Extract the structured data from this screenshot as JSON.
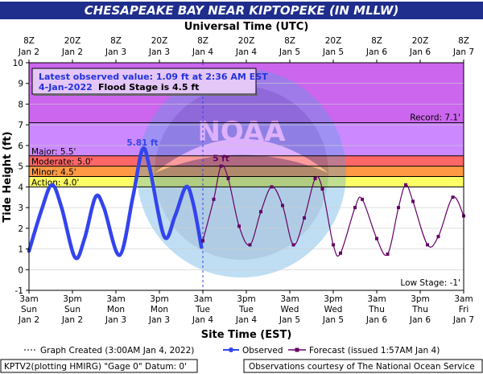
{
  "title": "CHESAPEAKE BAY NEAR KIPTOPEKE (IN MLLW)",
  "top_axis_title": "Universal Time (UTC)",
  "bottom_axis_title": "Site Time (EST)",
  "y_axis_title": "Tide Height (ft)",
  "info": {
    "line1": "Latest observed value: 1.09 ft at 2:36 AM EST",
    "line2_date": "4-Jan-2022",
    "line2_flood": "Flood Stage is 4.5 ft"
  },
  "annotations": {
    "obs_peak": "5.81 ft",
    "fcst_peak": "5 ft"
  },
  "legend": {
    "created": "Graph Created (3:00AM Jan 4, 2022)",
    "observed": "Observed",
    "forecast": "Forecast (issued 1:57AM Jan 4)"
  },
  "footer": {
    "left": "KPTV2(plotting HMIRG) \"Gage 0\" Datum: 0'",
    "right": "Observations courtesy of The National Ocean Service"
  },
  "watermark": "NOAA",
  "colors": {
    "title_bg": "#1f2e8c",
    "record": "#cc66ee",
    "major": "#cc88ff",
    "moderate": "#ff6666",
    "minor": "#ff9944",
    "action": "#ffff66",
    "observed": "#3344ee",
    "forecast": "#660066"
  },
  "chart_data": {
    "type": "line",
    "xlabel": "Site Time (EST)",
    "ylabel": "Tide Height (ft)",
    "x_range": [
      "Jan 2 03:00 EST",
      "Jan 7 03:00 EST"
    ],
    "ylim": [
      -1,
      10
    ],
    "yticks": [
      -1,
      0,
      1,
      2,
      3,
      4,
      5,
      6,
      7,
      8,
      9,
      10
    ],
    "top_ticks": [
      {
        "hour": "8Z",
        "date": "Jan 2"
      },
      {
        "hour": "20Z",
        "date": "Jan 2"
      },
      {
        "hour": "8Z",
        "date": "Jan 3"
      },
      {
        "hour": "20Z",
        "date": "Jan 3"
      },
      {
        "hour": "8Z",
        "date": "Jan 4"
      },
      {
        "hour": "20Z",
        "date": "Jan 4"
      },
      {
        "hour": "8Z",
        "date": "Jan 5"
      },
      {
        "hour": "20Z",
        "date": "Jan 5"
      },
      {
        "hour": "8Z",
        "date": "Jan 6"
      },
      {
        "hour": "20Z",
        "date": "Jan 6"
      },
      {
        "hour": "8Z",
        "date": "Jan 7"
      }
    ],
    "bottom_ticks": [
      {
        "time": "3am",
        "day": "Sun",
        "date": "Jan 2"
      },
      {
        "time": "3pm",
        "day": "Sun",
        "date": "Jan 2"
      },
      {
        "time": "3am",
        "day": "Mon",
        "date": "Jan 3"
      },
      {
        "time": "3pm",
        "day": "Mon",
        "date": "Jan 3"
      },
      {
        "time": "3am",
        "day": "Tue",
        "date": "Jan 4"
      },
      {
        "time": "3pm",
        "day": "Tue",
        "date": "Jan 4"
      },
      {
        "time": "3am",
        "day": "Wed",
        "date": "Jan 5"
      },
      {
        "time": "3pm",
        "day": "Wed",
        "date": "Jan 5"
      },
      {
        "time": "3am",
        "day": "Thu",
        "date": "Jan 6"
      },
      {
        "time": "3pm",
        "day": "Thu",
        "date": "Jan 6"
      },
      {
        "time": "3am",
        "day": "Fri",
        "date": "Jan 7"
      }
    ],
    "stages": [
      {
        "name": "Record",
        "label": "Record: 7.1'",
        "value": 7.1
      },
      {
        "name": "Major",
        "label": "Major: 5.5'",
        "value": 5.5
      },
      {
        "name": "Moderate",
        "label": "Moderate: 5.0'",
        "value": 5.0
      },
      {
        "name": "Minor",
        "label": "Minor: 4.5'",
        "value": 4.5
      },
      {
        "name": "Action",
        "label": "Action: 4.0'",
        "value": 4.0
      },
      {
        "name": "Low Stage",
        "label": "Low Stage: -1'",
        "value": -1
      }
    ],
    "graph_created": "Jan 4 03:00 EST",
    "series": [
      {
        "name": "Observed",
        "points": [
          [
            "Jan 2 03:00",
            0.9
          ],
          [
            "Jan 2 06:30",
            2.9
          ],
          [
            "Jan 2 09:20",
            4.1
          ],
          [
            "Jan 2 12:00",
            3.0
          ],
          [
            "Jan 2 15:40",
            0.6
          ],
          [
            "Jan 2 18:20",
            1.5
          ],
          [
            "Jan 2 21:20",
            3.5
          ],
          [
            "Jan 2 23:40",
            3.0
          ],
          [
            "Jan 3 04:00",
            0.7
          ],
          [
            "Jan 3 07:40",
            3.5
          ],
          [
            "Jan 3 10:20",
            5.81
          ],
          [
            "Jan 3 12:20",
            4.9
          ],
          [
            "Jan 3 16:20",
            1.6
          ],
          [
            "Jan 3 19:20",
            2.6
          ],
          [
            "Jan 3 22:20",
            4.0
          ],
          [
            "Jan 4 00:20",
            3.2
          ],
          [
            "Jan 4 02:36",
            1.09
          ]
        ]
      },
      {
        "name": "Forecast",
        "points": [
          [
            "Jan 4 03:00",
            1.4
          ],
          [
            "Jan 4 06:00",
            3.4
          ],
          [
            "Jan 4 08:00",
            5.0
          ],
          [
            "Jan 4 10:00",
            4.4
          ],
          [
            "Jan 4 13:00",
            2.1
          ],
          [
            "Jan 4 16:00",
            1.2
          ],
          [
            "Jan 4 19:00",
            2.8
          ],
          [
            "Jan 4 22:00",
            4.0
          ],
          [
            "Jan 5 01:00",
            3.1
          ],
          [
            "Jan 5 04:00",
            1.2
          ],
          [
            "Jan 5 07:00",
            2.5
          ],
          [
            "Jan 5 10:00",
            4.4
          ],
          [
            "Jan 5 12:00",
            3.9
          ],
          [
            "Jan 5 15:00",
            1.2
          ],
          [
            "Jan 5 17:00",
            0.8
          ],
          [
            "Jan 5 21:00",
            3.0
          ],
          [
            "Jan 5 23:00",
            3.4
          ],
          [
            "Jan 6 03:00",
            1.5
          ],
          [
            "Jan 6 06:00",
            0.75
          ],
          [
            "Jan 6 09:00",
            3.0
          ],
          [
            "Jan 6 11:00",
            4.1
          ],
          [
            "Jan 6 13:00",
            3.3
          ],
          [
            "Jan 6 17:00",
            1.2
          ],
          [
            "Jan 6 20:00",
            1.6
          ],
          [
            "Jan 7 00:00",
            3.5
          ],
          [
            "Jan 7 03:00",
            2.6
          ]
        ]
      }
    ]
  }
}
